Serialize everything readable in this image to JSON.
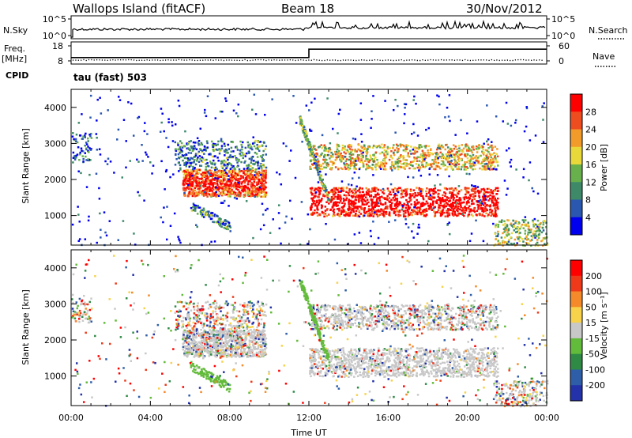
{
  "header": {
    "station": "Wallops Island (fitACF)",
    "beam": "Beam 18",
    "date": "30/Nov/2012"
  },
  "side_labels": {
    "nsky": "N.Sky",
    "freq_line1": "Freq.",
    "freq_line2": "[MHz]",
    "cpid": "CPID",
    "nsearch": "N.Search",
    "nave": "Nave",
    "cpid_value": "tau (fast) 503"
  },
  "chart_data": [
    {
      "type": "line",
      "name": "noise-panel",
      "ylabel_left": "N.Sky",
      "ylabel_right": "N.Search",
      "y_ticks_left": [
        "10^5",
        "10^0"
      ],
      "y_ticks_right": [
        "10^5",
        "10^0"
      ],
      "description_series": [
        {
          "name": "N.Sky",
          "style": "solid"
        },
        {
          "name": "N.Search",
          "style": "dotted"
        }
      ]
    },
    {
      "type": "line",
      "name": "freq-nave-panel",
      "ylabel_left": "Freq. [MHz]",
      "ylabel_right": "Nave",
      "y_ticks_left": [
        "18",
        "8"
      ],
      "y_ticks_right": [
        "60",
        "0"
      ],
      "freq_steps": [
        {
          "t": 0,
          "f": 10.2
        },
        {
          "t": 12,
          "f": 10.2
        },
        {
          "t": 12,
          "f": 15.8
        },
        {
          "t": 24,
          "f": 15.8
        }
      ]
    },
    {
      "type": "heatmap",
      "name": "power",
      "ylabel": "Slant Range [km]",
      "yticks": [
        1000,
        2000,
        3000,
        4000
      ],
      "ylim": [
        180,
        4500
      ],
      "xlim_hours": [
        0,
        24
      ],
      "colorbar_label": "Power [dB]",
      "colorbar_ticks": [
        "28",
        "24",
        "20",
        "16",
        "12",
        "8",
        "4"
      ],
      "colors": [
        "#0000ee",
        "#2a57b0",
        "#3e8a68",
        "#67b04c",
        "#e9d83a",
        "#f29a2a",
        "#ee4d1f",
        "#ff0000"
      ]
    },
    {
      "type": "heatmap",
      "name": "velocity",
      "ylabel": "Slant Range [km]",
      "yticks": [
        1000,
        2000,
        3000,
        4000
      ],
      "ylim": [
        180,
        4500
      ],
      "xlim_hours": [
        0,
        24
      ],
      "colorbar_label": "Velocity [m s⁻¹]",
      "colorbar_ticks": [
        "200",
        "100",
        "50",
        "15",
        "-15",
        "-50",
        "-100",
        "-200"
      ],
      "colors": [
        "#2332a8",
        "#2e5ea8",
        "#2f8a46",
        "#62bb3a",
        "#c8c8c8",
        "#f7d24a",
        "#f48a2a",
        "#ee3a1a",
        "#ff0000"
      ]
    }
  ],
  "xaxis": {
    "ticks": [
      "00:00",
      "04:00",
      "08:00",
      "12:00",
      "16:00",
      "20:00",
      "00:00"
    ],
    "label": "Time UT"
  }
}
